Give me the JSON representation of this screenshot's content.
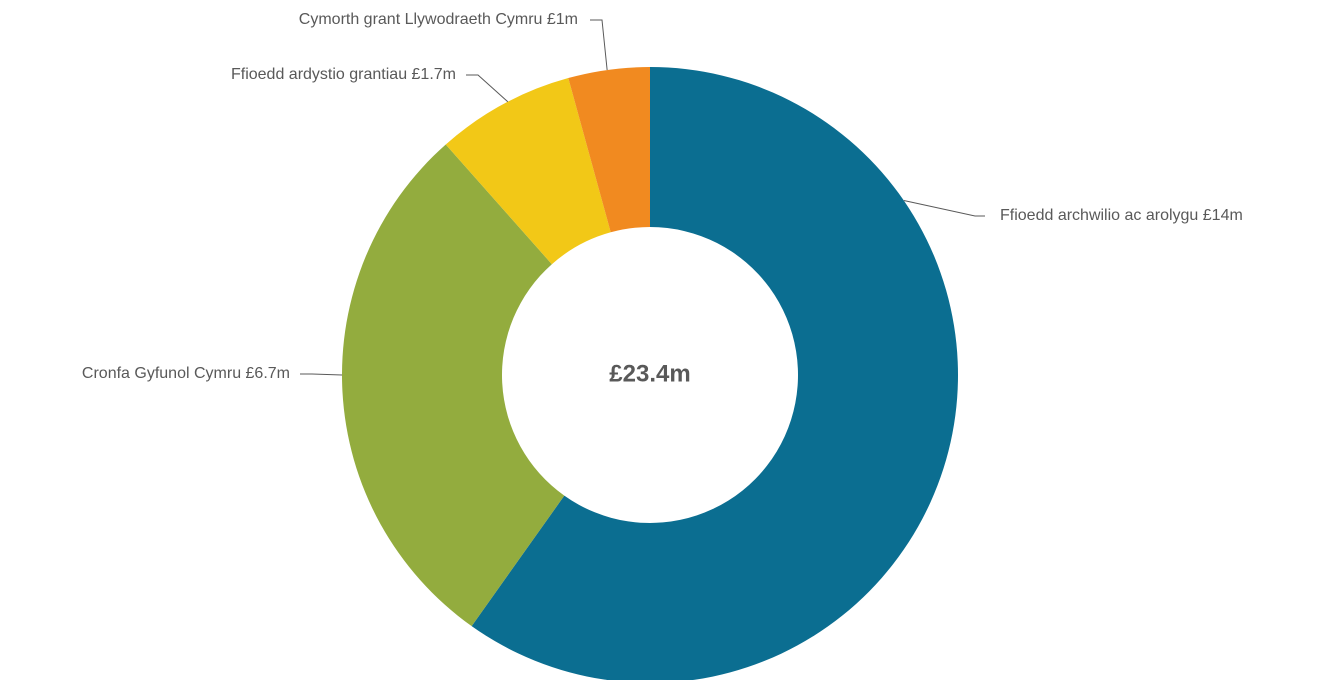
{
  "chart_data": {
    "type": "pie",
    "variant": "donut",
    "center_label": "£23.4m",
    "slices": [
      {
        "label": "Ffioedd archwilio ac arolygu £14m",
        "value": 14.0,
        "color": "#0b6e91"
      },
      {
        "label": "Cronfa Gyfunol Cymru £6.7m",
        "value": 6.7,
        "color": "#93ac3e"
      },
      {
        "label": "Ffioedd ardystio grantiau £1.7m",
        "value": 1.7,
        "color": "#f2c817"
      },
      {
        "label": "Cymorth grant Llywodraeth Cymru £1m",
        "value": 1.0,
        "color": "#f18a20"
      }
    ],
    "start_angle": "top",
    "direction": "clockwise",
    "legend": "none"
  }
}
